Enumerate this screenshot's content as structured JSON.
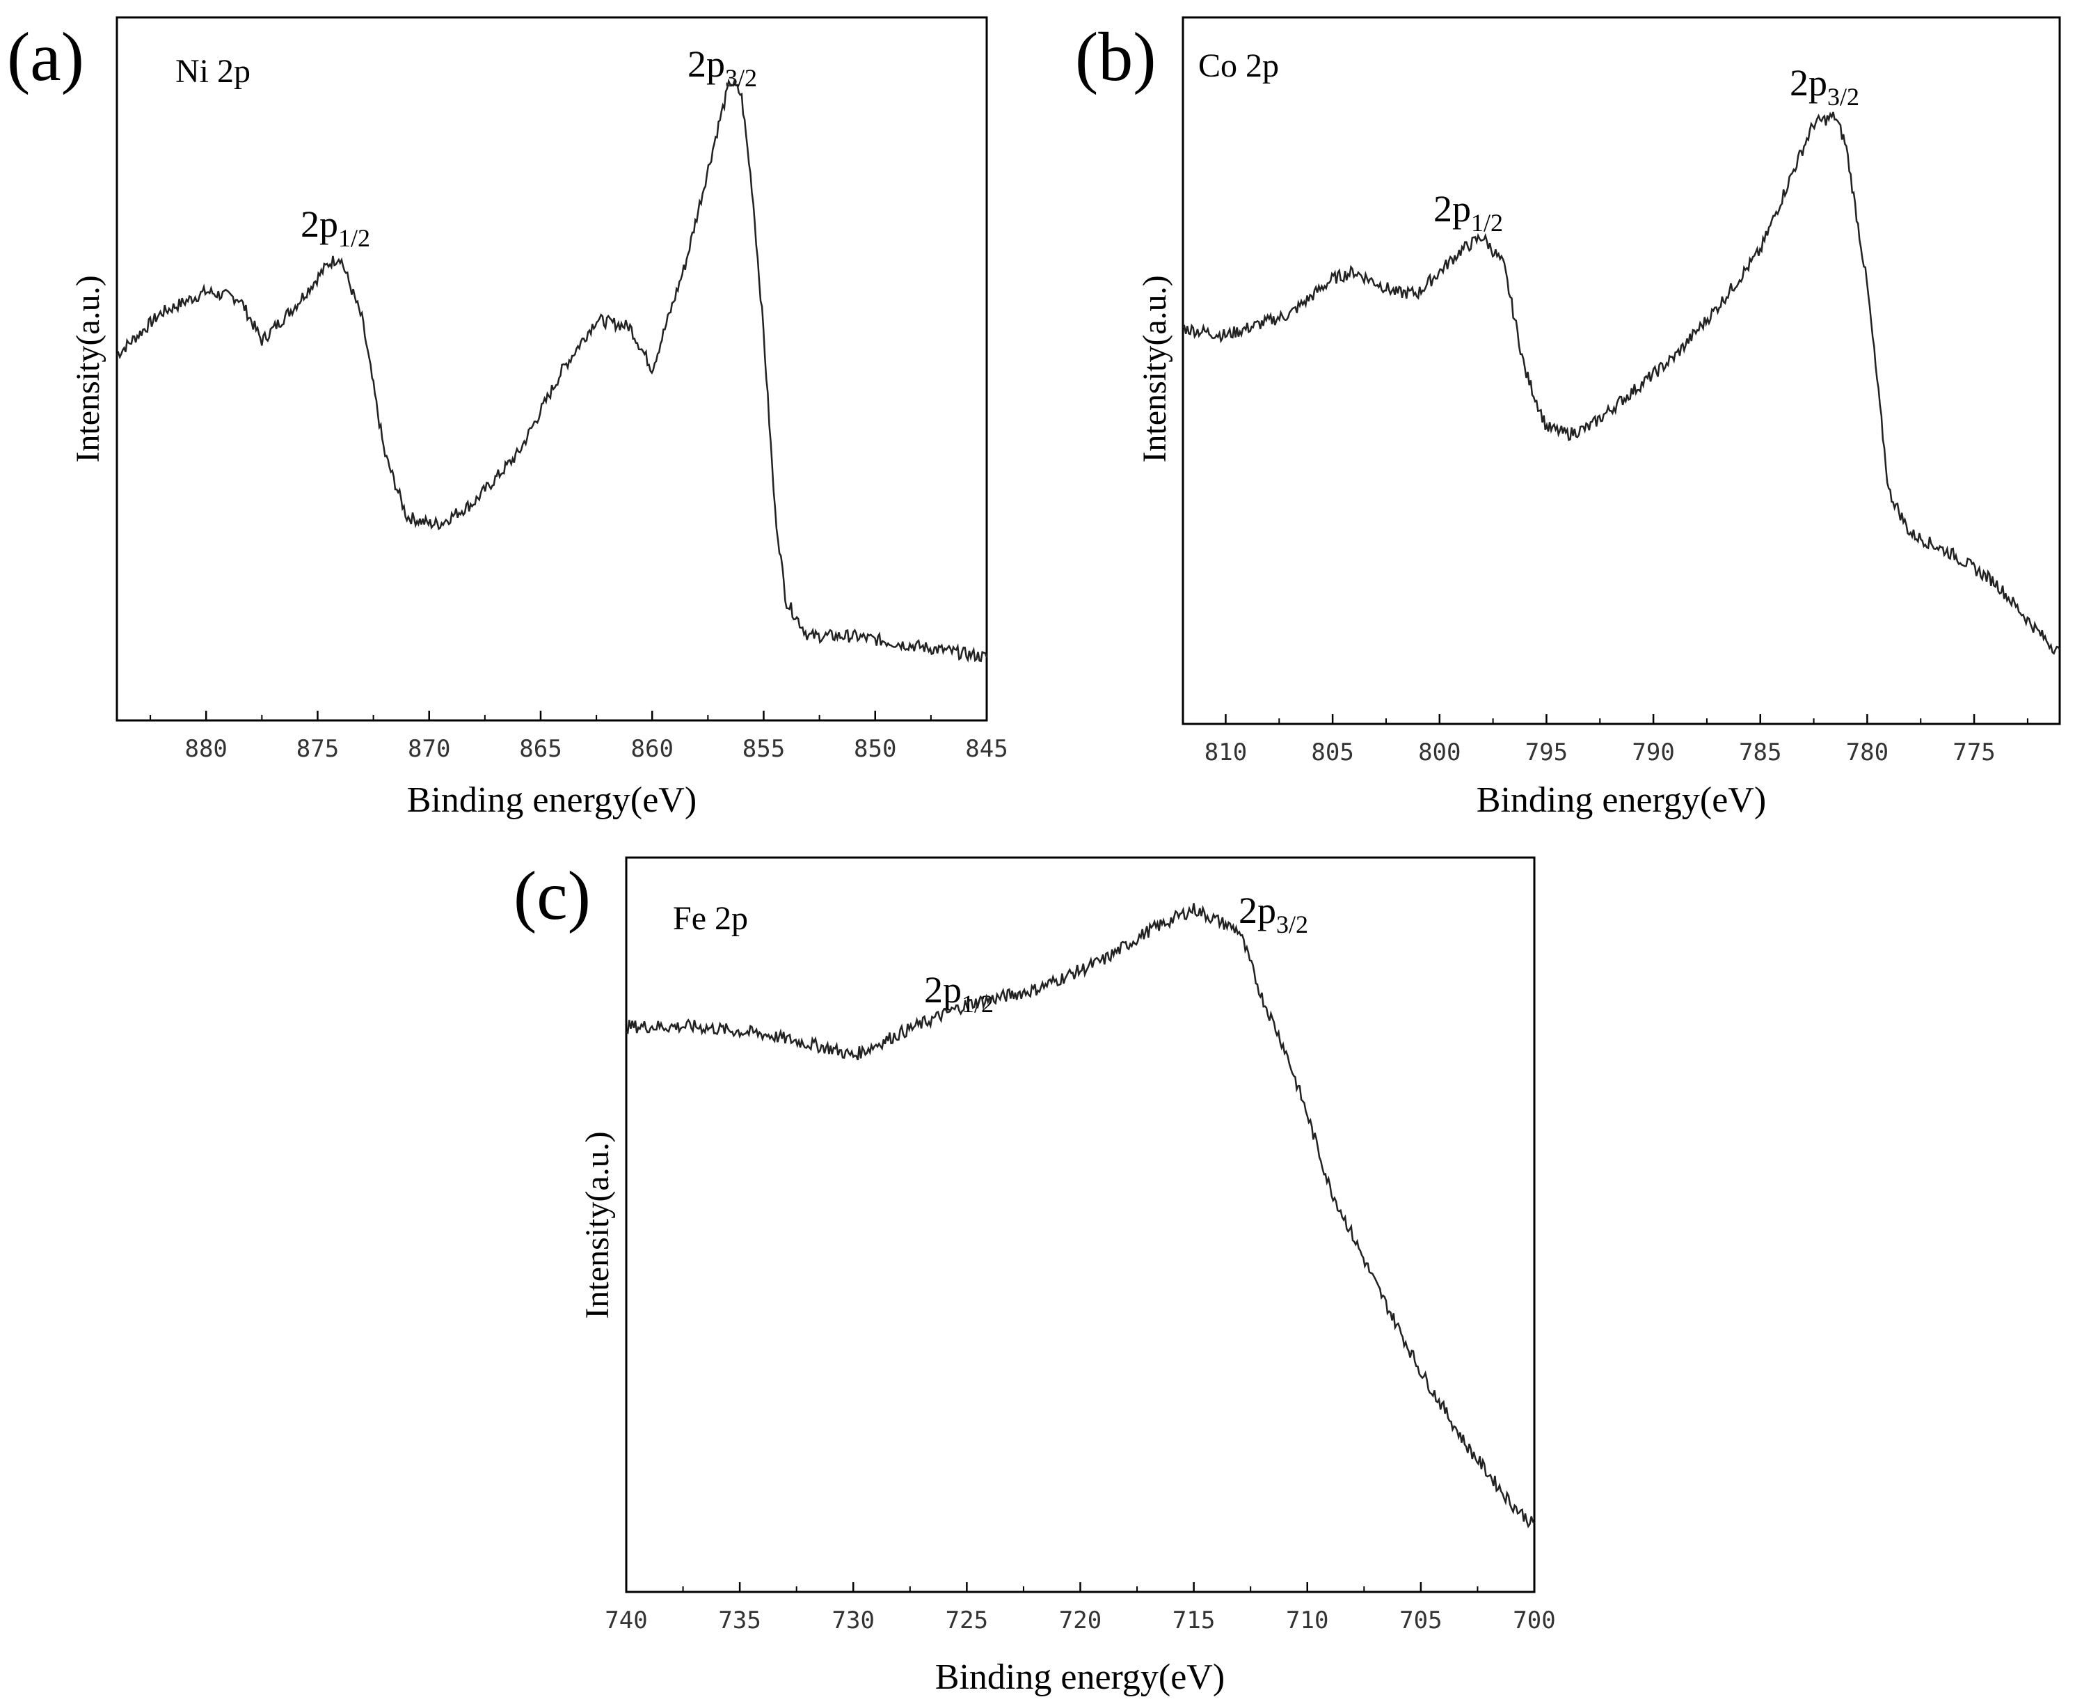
{
  "figure": {
    "panels": [
      {
        "panel_label": "(a)",
        "element_label": "Ni 2p",
        "peak_label_1": "2p",
        "peak_sub_1": "1/2",
        "peak_label_2": "2p",
        "peak_sub_2": "3/2"
      },
      {
        "panel_label": "(b)",
        "element_label": "Co 2p",
        "peak_label_1": "2p",
        "peak_sub_1": "1/2",
        "peak_label_2": "2p",
        "peak_sub_2": "3/2"
      },
      {
        "panel_label": "(c)",
        "element_label": "Fe 2p",
        "peak_label_1": "2p",
        "peak_sub_1": "1/2",
        "peak_label_2": "2p",
        "peak_sub_2": "3/2"
      }
    ]
  },
  "chart_data": [
    {
      "type": "line",
      "title": "Ni 2p",
      "xlabel": "Binding energy(eV)",
      "ylabel": "Intensity(a.u.)",
      "xlim": [
        884,
        845
      ],
      "ylim": [
        0,
        1
      ],
      "xticks": [
        880,
        875,
        870,
        865,
        860,
        855,
        850,
        845
      ],
      "x": [
        884,
        882,
        880,
        878.5,
        877.5,
        876,
        874.5,
        874,
        873,
        872,
        871,
        870,
        869.5,
        868,
        866,
        864,
        862.5,
        861,
        860,
        858.5,
        857,
        856.5,
        856,
        855.5,
        855,
        854.5,
        854,
        853,
        851,
        849,
        847,
        845
      ],
      "values": [
        0.52,
        0.58,
        0.61,
        0.6,
        0.54,
        0.59,
        0.65,
        0.66,
        0.57,
        0.38,
        0.29,
        0.28,
        0.28,
        0.31,
        0.38,
        0.5,
        0.57,
        0.56,
        0.5,
        0.65,
        0.85,
        0.91,
        0.89,
        0.75,
        0.55,
        0.3,
        0.17,
        0.12,
        0.12,
        0.11,
        0.1,
        0.09
      ],
      "annotations": [
        {
          "text": "2p1/2",
          "x": 874
        },
        {
          "text": "2p3/2",
          "x": 856.3
        }
      ]
    },
    {
      "type": "line",
      "title": "Co 2p",
      "xlabel": "Binding energy(eV)",
      "ylabel": "Intensity(a.u.)",
      "xlim": [
        812,
        771
      ],
      "ylim": [
        0,
        1
      ],
      "xticks": [
        810,
        805,
        800,
        795,
        790,
        785,
        780,
        775
      ],
      "x": [
        812,
        810,
        807,
        805,
        804,
        802,
        801,
        799,
        798,
        797,
        796,
        795,
        794,
        793,
        791,
        789,
        787,
        785,
        783.5,
        782.5,
        781.5,
        781,
        780,
        779,
        778,
        776,
        774,
        772,
        771
      ],
      "values": [
        0.56,
        0.55,
        0.58,
        0.63,
        0.64,
        0.61,
        0.61,
        0.67,
        0.69,
        0.65,
        0.5,
        0.42,
        0.41,
        0.42,
        0.47,
        0.52,
        0.59,
        0.67,
        0.78,
        0.85,
        0.86,
        0.82,
        0.62,
        0.33,
        0.27,
        0.24,
        0.2,
        0.13,
        0.1
      ],
      "annotations": [
        {
          "text": "2p1/2",
          "x": 798
        },
        {
          "text": "2p3/2",
          "x": 782.3
        }
      ]
    },
    {
      "type": "line",
      "title": "Fe 2p",
      "xlabel": "Binding energy(eV)",
      "ylabel": "Intensity(a.u.)",
      "xlim": [
        740,
        700
      ],
      "ylim": [
        0,
        1
      ],
      "xticks": [
        740,
        735,
        730,
        725,
        720,
        715,
        710,
        705,
        700
      ],
      "x": [
        740,
        737,
        734,
        731,
        730,
        728,
        725,
        722,
        719,
        717,
        715,
        713,
        712,
        711,
        710,
        709,
        707,
        705,
        703,
        701,
        700
      ],
      "values": [
        0.77,
        0.77,
        0.76,
        0.74,
        0.73,
        0.76,
        0.8,
        0.82,
        0.86,
        0.9,
        0.93,
        0.9,
        0.81,
        0.74,
        0.65,
        0.55,
        0.42,
        0.3,
        0.2,
        0.12,
        0.09
      ],
      "annotations": [
        {
          "text": "2p1/2",
          "x": 724
        },
        {
          "text": "2p3/2",
          "x": 712.5
        }
      ]
    }
  ]
}
